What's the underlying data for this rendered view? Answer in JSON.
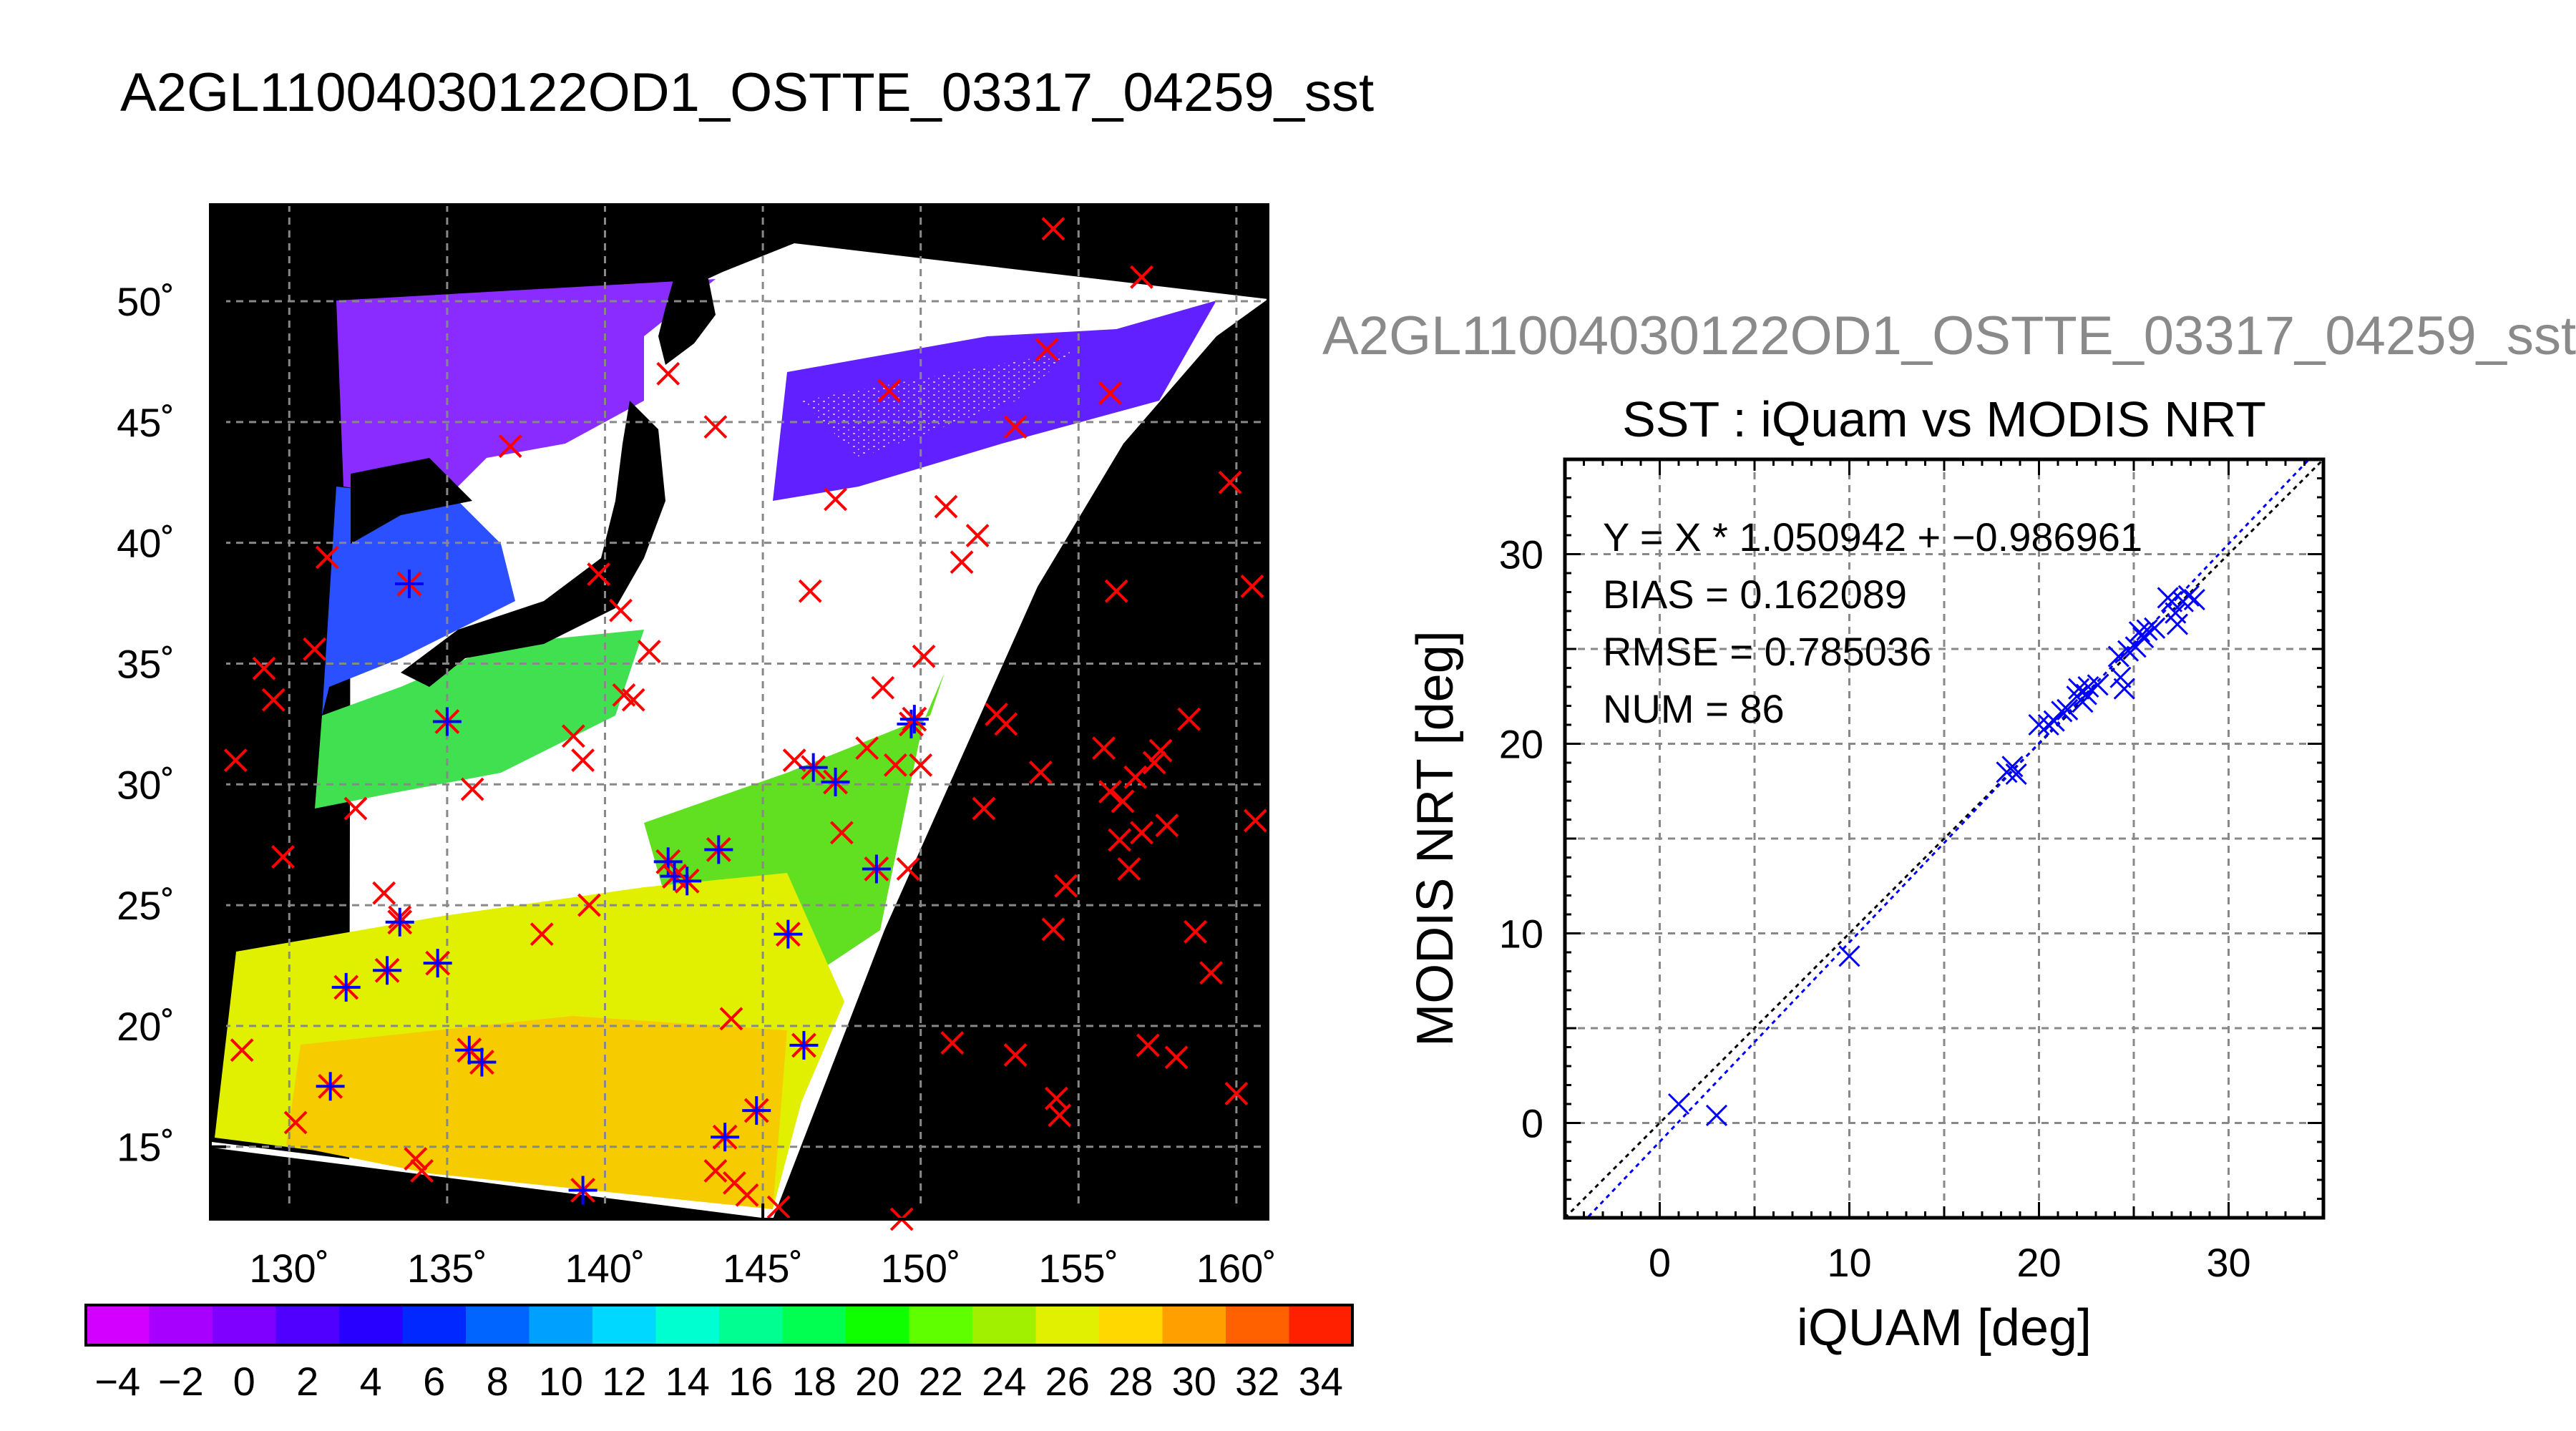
{
  "page": {
    "title": "A2GL11004030122OD1_OSTTE_03317_04259_sst",
    "scatter_file_title": "A2GL11004030122OD1_OSTTE_03317_04259_sst"
  },
  "colors": {
    "background": "#ffffff",
    "map_background": "#000000",
    "buoy_marker": "#ff0000",
    "matched_marker": "#0000ff",
    "fit_line": "#0000ff",
    "identity_line": "#000000",
    "grid": "#888888"
  },
  "chart_data": [
    {
      "type": "heatmap",
      "subtype": "map",
      "xticks": [
        "130˚",
        "135˚",
        "140˚",
        "145˚",
        "150˚",
        "155˚",
        "160˚"
      ],
      "yticks": [
        "15˚",
        "20˚",
        "25˚",
        "30˚",
        "35˚",
        "40˚",
        "45˚",
        "50˚"
      ],
      "xlim": [
        127.5,
        161.0
      ],
      "ylim": [
        12.0,
        54.0
      ],
      "grid": true,
      "colorbar": {
        "ticks": [
          "−4",
          "−2",
          "0",
          "2",
          "4",
          "6",
          "8",
          "10",
          "12",
          "14",
          "16",
          "18",
          "20",
          "22",
          "24",
          "26",
          "28",
          "30",
          "32",
          "34"
        ],
        "range": [
          -5,
          35
        ],
        "step": 2,
        "colors": [
          "#d400ff",
          "#a800ff",
          "#8000ff",
          "#5000ff",
          "#2800ff",
          "#0028ff",
          "#0064ff",
          "#00a0ff",
          "#00d8ff",
          "#00ffd0",
          "#00ff90",
          "#00ff50",
          "#10ff00",
          "#60ff00",
          "#a0f000",
          "#e0f000",
          "#ffd800",
          "#ffa000",
          "#ff6000",
          "#ff2000"
        ]
      },
      "markers": {
        "buoy_only": [
          [
            128.3,
            31.0
          ],
          [
            129.2,
            34.8
          ],
          [
            129.5,
            33.5
          ],
          [
            129.8,
            27.0
          ],
          [
            130.2,
            16.0
          ],
          [
            130.8,
            35.6
          ],
          [
            131.2,
            39.4
          ],
          [
            132.1,
            29.0
          ],
          [
            128.5,
            19.0
          ],
          [
            133.0,
            25.5
          ],
          [
            133.5,
            24.5
          ],
          [
            134.0,
            14.5
          ],
          [
            134.2,
            14.0
          ],
          [
            135.8,
            29.8
          ],
          [
            137.0,
            44.0
          ],
          [
            138.0,
            23.8
          ],
          [
            139.0,
            32.0
          ],
          [
            139.3,
            31.0
          ],
          [
            139.5,
            25.0
          ],
          [
            139.8,
            38.7
          ],
          [
            140.5,
            37.2
          ],
          [
            140.6,
            33.7
          ],
          [
            140.9,
            33.5
          ],
          [
            141.4,
            35.5
          ],
          [
            142.0,
            47.0
          ],
          [
            143.5,
            44.8
          ],
          [
            144.0,
            20.3
          ],
          [
            143.5,
            14.0
          ],
          [
            144.1,
            13.5
          ],
          [
            144.5,
            13.0
          ],
          [
            145.5,
            12.5
          ],
          [
            146.0,
            31.0
          ],
          [
            146.5,
            38.0
          ],
          [
            147.3,
            41.8
          ],
          [
            147.5,
            28.0
          ],
          [
            148.3,
            31.5
          ],
          [
            148.8,
            34.0
          ],
          [
            149.0,
            46.3
          ],
          [
            149.2,
            30.8
          ],
          [
            149.4,
            12.0
          ],
          [
            149.6,
            26.5
          ],
          [
            150.0,
            30.8
          ],
          [
            150.1,
            35.3
          ],
          [
            150.8,
            41.5
          ],
          [
            151.3,
            39.2
          ],
          [
            151.8,
            40.3
          ],
          [
            151.0,
            19.3
          ],
          [
            152.0,
            29.0
          ],
          [
            152.4,
            32.9
          ],
          [
            152.7,
            32.5
          ],
          [
            153.0,
            44.8
          ],
          [
            153.0,
            18.8
          ],
          [
            153.8,
            30.5
          ],
          [
            154.0,
            48.0
          ],
          [
            154.2,
            53.0
          ],
          [
            154.2,
            24.0
          ],
          [
            154.6,
            25.8
          ],
          [
            154.3,
            17.0
          ],
          [
            154.4,
            16.3
          ],
          [
            155.8,
            31.5
          ],
          [
            156.0,
            46.2
          ],
          [
            156.0,
            29.7
          ],
          [
            156.2,
            38.0
          ],
          [
            156.3,
            27.7
          ],
          [
            156.4,
            29.3
          ],
          [
            156.6,
            26.5
          ],
          [
            156.8,
            30.3
          ],
          [
            157.0,
            51.0
          ],
          [
            157.0,
            28.0
          ],
          [
            157.4,
            30.9
          ],
          [
            157.6,
            31.4
          ],
          [
            157.2,
            19.2
          ],
          [
            157.8,
            28.3
          ],
          [
            158.1,
            18.7
          ],
          [
            158.5,
            32.7
          ],
          [
            158.7,
            23.9
          ],
          [
            159.2,
            22.2
          ],
          [
            159.8,
            42.5
          ],
          [
            160.0,
            17.2
          ],
          [
            160.5,
            38.2
          ],
          [
            160.6,
            28.5
          ]
        ],
        "matched": [
          [
            131.3,
            17.5
          ],
          [
            131.8,
            21.6
          ],
          [
            133.1,
            22.3
          ],
          [
            133.5,
            24.3
          ],
          [
            133.8,
            38.3
          ],
          [
            134.7,
            22.6
          ],
          [
            135.0,
            32.6
          ],
          [
            135.7,
            19.0
          ],
          [
            136.1,
            18.5
          ],
          [
            139.3,
            13.2
          ],
          [
            142.0,
            26.8
          ],
          [
            142.2,
            26.2
          ],
          [
            142.6,
            26.0
          ],
          [
            143.6,
            27.3
          ],
          [
            143.8,
            15.4
          ],
          [
            144.8,
            16.5
          ],
          [
            145.8,
            23.8
          ],
          [
            146.3,
            19.2
          ],
          [
            146.6,
            30.7
          ],
          [
            147.3,
            30.1
          ],
          [
            148.6,
            26.5
          ],
          [
            149.7,
            32.5
          ],
          [
            149.8,
            32.7
          ]
        ]
      }
    },
    {
      "type": "scatter",
      "title": "SST : iQuam vs MODIS NRT",
      "xlabel": "iQUAM [deg]",
      "ylabel": "MODIS NRT [deg]",
      "xlim": [
        -5,
        35
      ],
      "ylim": [
        -5,
        35
      ],
      "xticks": [
        "0",
        "10",
        "20",
        "30"
      ],
      "yticks": [
        "0",
        "10",
        "20",
        "30"
      ],
      "grid": true,
      "annotations": {
        "fit": "Y = X * 1.050942 + −0.986961",
        "bias": "BIAS = 0.162089",
        "rmse": "RMSE = 0.785036",
        "num": "NUM = 86"
      },
      "fit_line": {
        "slope": 1.050942,
        "intercept": -0.986961
      },
      "identity_line": {
        "slope": 1,
        "intercept": 0
      },
      "points": [
        [
          1.0,
          1.0
        ],
        [
          3.0,
          0.4
        ],
        [
          10.0,
          8.8
        ],
        [
          18.3,
          18.5
        ],
        [
          18.6,
          18.8
        ],
        [
          18.8,
          18.4
        ],
        [
          20.0,
          21.0
        ],
        [
          20.5,
          21.0
        ],
        [
          20.8,
          21.2
        ],
        [
          21.2,
          21.7
        ],
        [
          21.5,
          21.8
        ],
        [
          22.0,
          22.5
        ],
        [
          22.1,
          22.9
        ],
        [
          22.3,
          22.2
        ],
        [
          22.5,
          22.6
        ],
        [
          22.6,
          23.0
        ],
        [
          23.1,
          23.1
        ],
        [
          24.2,
          24.6
        ],
        [
          24.3,
          23.5
        ],
        [
          24.5,
          22.9
        ],
        [
          24.7,
          24.9
        ],
        [
          25.1,
          25.1
        ],
        [
          25.3,
          25.9
        ],
        [
          25.5,
          25.6
        ],
        [
          25.7,
          26.0
        ],
        [
          26.1,
          26.1
        ],
        [
          26.8,
          27.7
        ],
        [
          27.0,
          27.5
        ],
        [
          27.2,
          26.9
        ],
        [
          27.3,
          26.3
        ],
        [
          27.6,
          27.5
        ],
        [
          27.9,
          27.8
        ],
        [
          28.2,
          27.6
        ]
      ]
    }
  ]
}
